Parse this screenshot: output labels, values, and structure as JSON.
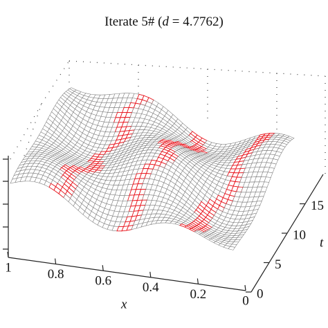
{
  "chart_data": {
    "type": "surface",
    "title_parts": [
      "Iterate 5# (",
      "d",
      " = 4.7762)"
    ],
    "x_label": "x",
    "t_label": "t",
    "xlim": [
      0,
      1
    ],
    "xticks": [
      1,
      0.8,
      0.6,
      0.4,
      0.2,
      0
    ],
    "tlim": [
      0,
      20
    ],
    "tticks": [
      0,
      5,
      10,
      15
    ],
    "mesh_color": "#7a7a7a",
    "path_color": "#e8141c"
  }
}
